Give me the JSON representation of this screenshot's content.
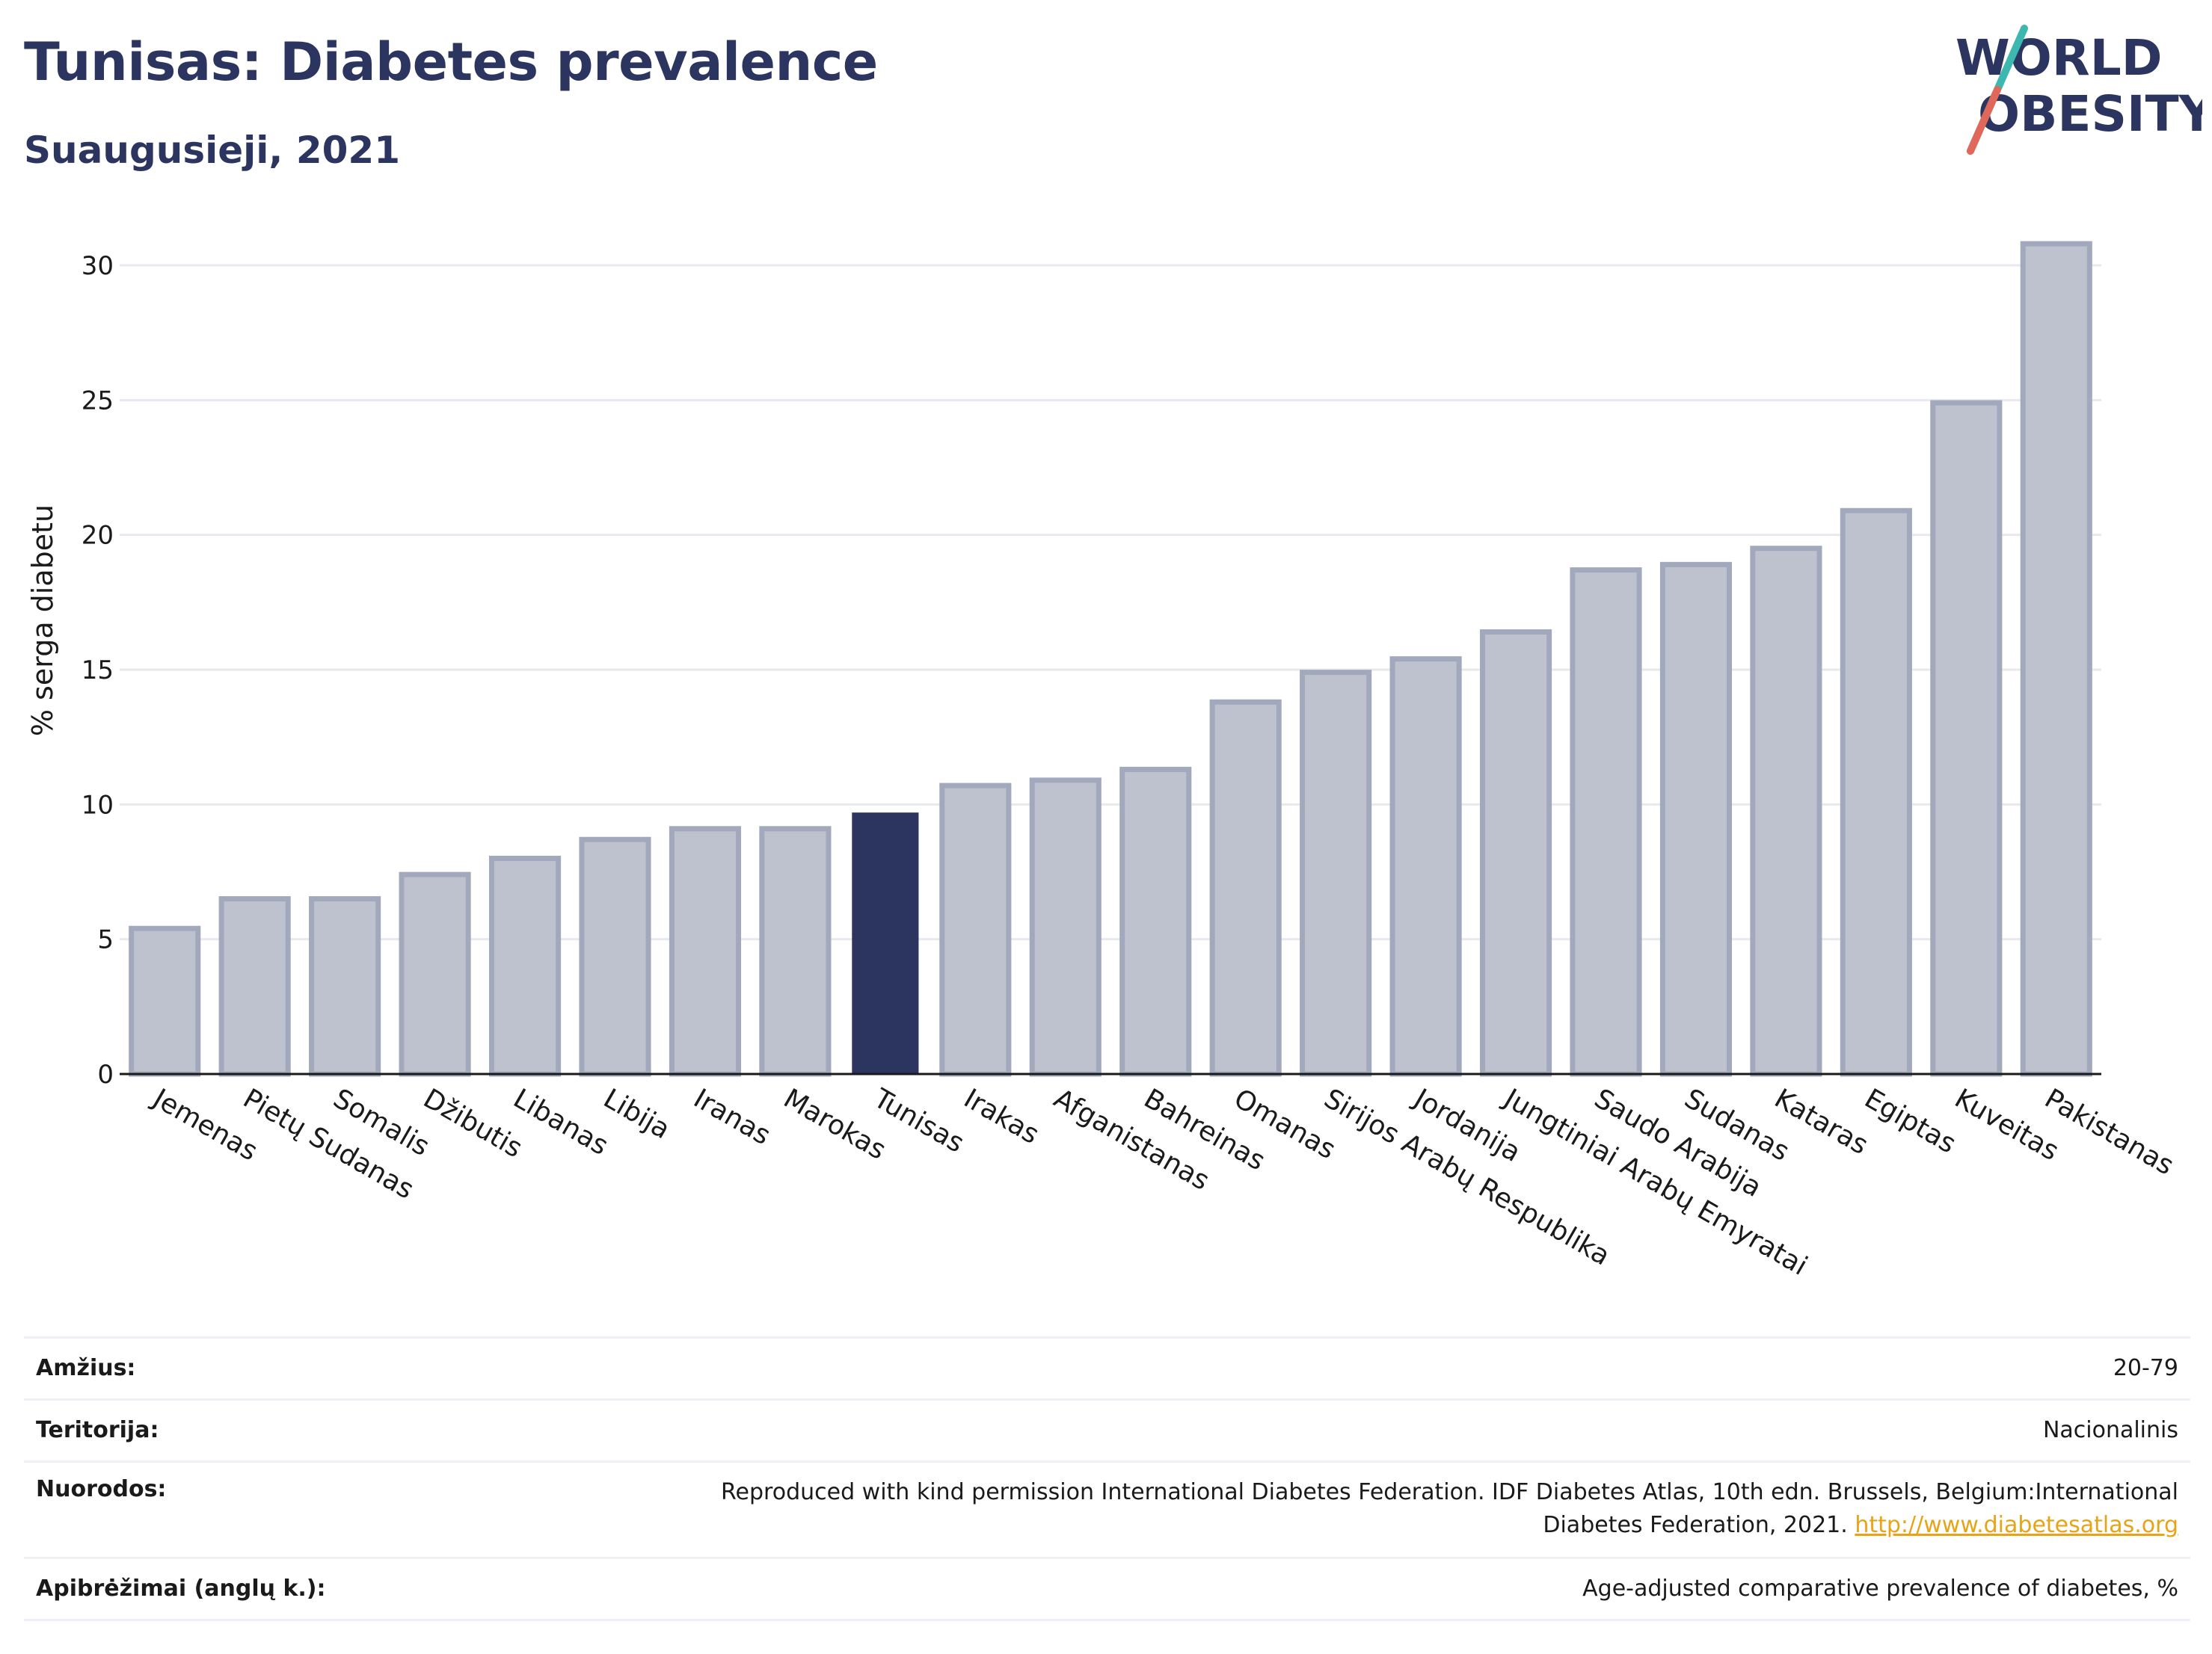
{
  "header": {
    "title": "Tunisas: Diabetes prevalence",
    "subtitle": "Suaugusieji, 2021"
  },
  "logo": {
    "line1": "WORLD",
    "line2": "OBESITY",
    "accent_colors": [
      "#3cb8b0",
      "#e0685a"
    ]
  },
  "colors": {
    "highlight": "#2b3560",
    "bar_fill": "#bec2cf",
    "bar_stroke": "#a3a9bd",
    "grid": "#e8e9ef"
  },
  "chart_data": {
    "type": "bar",
    "ylabel": "% serga diabetu",
    "ylim": [
      0,
      32
    ],
    "yticks": [
      0,
      5,
      10,
      15,
      20,
      25,
      30
    ],
    "grid": true,
    "highlight": "Tunisas",
    "categories": [
      "Jemenas",
      "Pietų Sudanas",
      "Somalis",
      "Džibutis",
      "Libanas",
      "Libija",
      "Iranas",
      "Marokas",
      "Tunisas",
      "Irakas",
      "Afganistanas",
      "Bahreinas",
      "Omanas",
      "Sirijos Arabų Respublika",
      "Jordanija",
      "Jungtiniai Arabų Emyratai",
      "Saudo Arabija",
      "Sudanas",
      "Kataras",
      "Egiptas",
      "Kuveitas",
      "Pakistanas"
    ],
    "values": [
      5.4,
      6.5,
      6.5,
      7.4,
      8.0,
      8.7,
      9.1,
      9.1,
      9.7,
      10.7,
      10.9,
      11.3,
      13.8,
      14.9,
      15.4,
      16.4,
      18.7,
      18.9,
      19.5,
      20.9,
      24.9,
      30.8
    ]
  },
  "info": {
    "age_label": "Amžius:",
    "age_value": "20-79",
    "territory_label": "Teritorija:",
    "territory_value": "Nacionalinis",
    "references_label": "Nuorodos:",
    "references_line1": "Reproduced with kind permission International Diabetes Federation.  IDF Diabetes Atlas, 10th edn. Brussels, Belgium:International",
    "references_line2": "Diabetes Federation, 2021.",
    "references_link": "http://www.diabetesatlas.org",
    "definitions_label": "Apibrėžimai (anglų k.):",
    "definitions_value": "Age-adjusted comparative prevalence of diabetes, %"
  }
}
